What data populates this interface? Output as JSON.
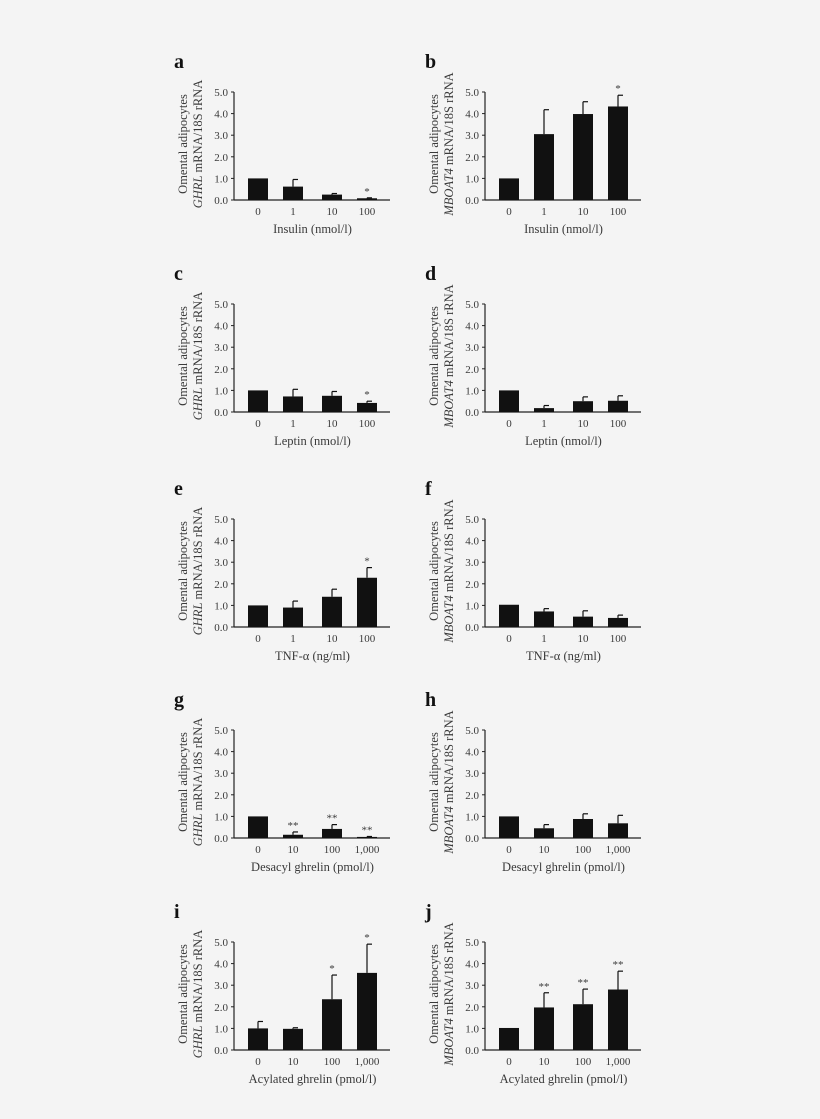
{
  "chart_data": [
    {
      "panel": "a",
      "type": "bar",
      "ylabel_line1": "Omental adipocytes",
      "ylabel_gene": "GHRL",
      "ylabel_rest": " mRNA/18S rRNA",
      "xlabel": "Insulin (nmol/l)",
      "categories": [
        "0",
        "1",
        "10",
        "100"
      ],
      "values": [
        1.0,
        0.62,
        0.25,
        0.08
      ],
      "error_upper": [
        1.0,
        0.95,
        0.3,
        0.1
      ],
      "significance": [
        "",
        "",
        "",
        "*"
      ],
      "yticks": [
        "0.0",
        "1.0",
        "2.0",
        "3.0",
        "4.0",
        "5.0"
      ],
      "ylim": [
        0,
        5
      ]
    },
    {
      "panel": "b",
      "type": "bar",
      "ylabel_line1": "Omental adipocytes",
      "ylabel_gene": "MBOAT4",
      "ylabel_rest": " mRNA/18S rRNA",
      "xlabel": "Insulin (nmol/l)",
      "categories": [
        "0",
        "1",
        "10",
        "100"
      ],
      "values": [
        1.0,
        3.05,
        3.98,
        4.33
      ],
      "error_upper": [
        1.0,
        4.18,
        4.55,
        4.85
      ],
      "significance": [
        "",
        "",
        "",
        "*"
      ],
      "yticks": [
        "0.0",
        "1.0",
        "2.0",
        "3.0",
        "4.0",
        "5.0"
      ],
      "ylim": [
        0,
        5
      ]
    },
    {
      "panel": "c",
      "type": "bar",
      "ylabel_line1": "Omental adipocytes",
      "ylabel_gene": "GHRL",
      "ylabel_rest": " mRNA/18S rRNA",
      "xlabel": "Leptin (nmol/l)",
      "categories": [
        "0",
        "1",
        "10",
        "100"
      ],
      "values": [
        1.0,
        0.72,
        0.75,
        0.42
      ],
      "error_upper": [
        1.0,
        1.05,
        0.95,
        0.5
      ],
      "significance": [
        "",
        "",
        "",
        "*"
      ],
      "yticks": [
        "0.0",
        "1.0",
        "2.0",
        "3.0",
        "4.0",
        "5.0"
      ],
      "ylim": [
        0,
        5
      ]
    },
    {
      "panel": "d",
      "type": "bar",
      "ylabel_line1": "Omental adipocytes",
      "ylabel_gene": "MBOAT4",
      "ylabel_rest": " mRNA/18S rRNA",
      "xlabel": "Leptin (nmol/l)",
      "categories": [
        "0",
        "1",
        "10",
        "100"
      ],
      "values": [
        1.0,
        0.18,
        0.5,
        0.52
      ],
      "error_upper": [
        1.0,
        0.3,
        0.7,
        0.75
      ],
      "significance": [
        "",
        "",
        "",
        ""
      ],
      "yticks": [
        "0.0",
        "1.0",
        "2.0",
        "3.0",
        "4.0",
        "5.0"
      ],
      "ylim": [
        0,
        5
      ]
    },
    {
      "panel": "e",
      "type": "bar",
      "ylabel_line1": "Omental adipocytes",
      "ylabel_gene": "GHRL",
      "ylabel_rest": " mRNA/18S rRNA",
      "xlabel": "TNF-α (ng/ml)",
      "categories": [
        "0",
        "1",
        "10",
        "100"
      ],
      "values": [
        1.0,
        0.9,
        1.4,
        2.28
      ],
      "error_upper": [
        1.0,
        1.2,
        1.75,
        2.75
      ],
      "significance": [
        "",
        "",
        "",
        "*"
      ],
      "yticks": [
        "0.0",
        "1.0",
        "2.0",
        "3.0",
        "4.0",
        "5.0"
      ],
      "ylim": [
        0,
        5
      ]
    },
    {
      "panel": "f",
      "type": "bar",
      "ylabel_line1": "Omental adipocytes",
      "ylabel_gene": "MBOAT4",
      "ylabel_rest": " mRNA/18S rRNA",
      "xlabel": "TNF-α (ng/ml)",
      "categories": [
        "0",
        "1",
        "10",
        "100"
      ],
      "values": [
        1.03,
        0.72,
        0.48,
        0.42
      ],
      "error_upper": [
        1.03,
        0.85,
        0.75,
        0.55
      ],
      "significance": [
        "",
        "",
        "",
        ""
      ],
      "yticks": [
        "0.0",
        "1.0",
        "2.0",
        "3.0",
        "4.0",
        "5.0"
      ],
      "ylim": [
        0,
        5
      ]
    },
    {
      "panel": "g",
      "type": "bar",
      "ylabel_line1": "Omental adipocytes",
      "ylabel_gene": "GHRL",
      "ylabel_rest": " mRNA/18S rRNA",
      "xlabel": "Desacyl ghrelin (pmol/l)",
      "categories": [
        "0",
        "10",
        "100",
        "1,000"
      ],
      "values": [
        1.0,
        0.15,
        0.42,
        0.05
      ],
      "error_upper": [
        1.0,
        0.28,
        0.62,
        0.07
      ],
      "significance": [
        "",
        "**",
        "**",
        "**"
      ],
      "yticks": [
        "0.0",
        "1.0",
        "2.0",
        "3.0",
        "4.0",
        "5.0"
      ],
      "ylim": [
        0,
        5
      ]
    },
    {
      "panel": "h",
      "type": "bar",
      "ylabel_line1": "Omental adipocytes",
      "ylabel_gene": "MBOAT4",
      "ylabel_rest": " mRNA/18S rRNA",
      "xlabel": "Desacyl ghrelin (pmol/l)",
      "categories": [
        "0",
        "10",
        "100",
        "1,000"
      ],
      "values": [
        1.0,
        0.45,
        0.88,
        0.68
      ],
      "error_upper": [
        1.0,
        0.62,
        1.12,
        1.05
      ],
      "significance": [
        "",
        "",
        "",
        ""
      ],
      "yticks": [
        "0.0",
        "1.0",
        "2.0",
        "3.0",
        "4.0",
        "5.0"
      ],
      "ylim": [
        0,
        5
      ]
    },
    {
      "panel": "i",
      "type": "bar",
      "ylabel_line1": "Omental adipocytes",
      "ylabel_gene": "GHRL",
      "ylabel_rest": " mRNA/18S rRNA",
      "xlabel": "Acylated ghrelin (pmol/l)",
      "categories": [
        "0",
        "10",
        "100",
        "1,000"
      ],
      "values": [
        1.0,
        0.98,
        2.35,
        3.57
      ],
      "error_upper": [
        1.32,
        1.03,
        3.47,
        4.9
      ],
      "significance": [
        "",
        "",
        "*",
        "*"
      ],
      "yticks": [
        "0.0",
        "1.0",
        "2.0",
        "3.0",
        "4.0",
        "5.0"
      ],
      "ylim": [
        0,
        5
      ]
    },
    {
      "panel": "j",
      "type": "bar",
      "ylabel_line1": "Omental adipocytes",
      "ylabel_gene": "MBOAT4",
      "ylabel_rest": " mRNA/18S rRNA",
      "xlabel": "Acylated ghrelin (pmol/l)",
      "categories": [
        "0",
        "10",
        "100",
        "1,000"
      ],
      "values": [
        1.02,
        1.97,
        2.12,
        2.8
      ],
      "error_upper": [
        1.02,
        2.65,
        2.82,
        3.65
      ],
      "significance": [
        "",
        "**",
        "**",
        "**"
      ],
      "yticks": [
        "0.0",
        "1.0",
        "2.0",
        "3.0",
        "4.0",
        "5.0"
      ],
      "ylim": [
        0,
        5
      ]
    }
  ],
  "colors": {
    "bar": "#111111",
    "background": "#f4f4f4",
    "text": "#3a3a3a"
  }
}
